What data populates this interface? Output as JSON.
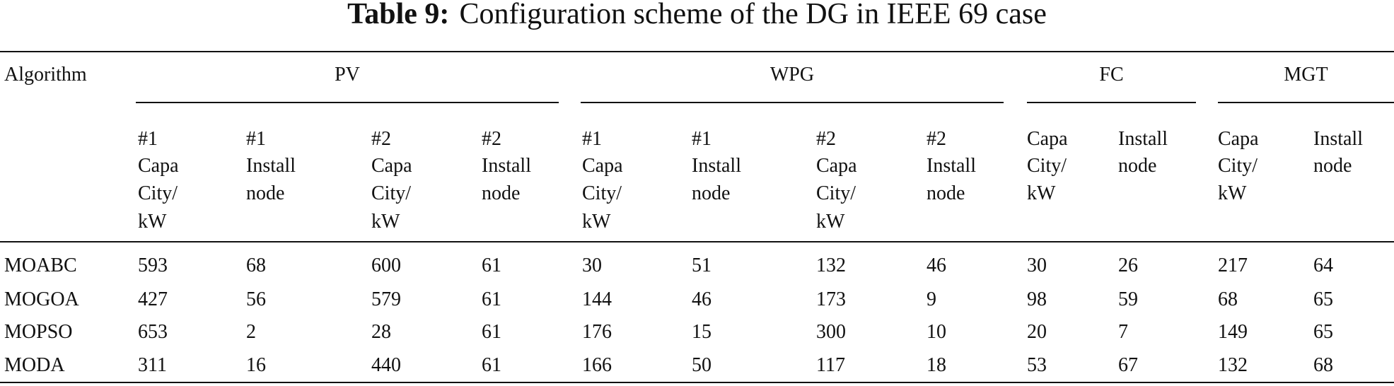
{
  "title": {
    "label": "Table 9:",
    "text": "Configuration scheme of the DG in IEEE 69 case"
  },
  "table": {
    "first_header": "Algorithm",
    "groups": [
      "PV",
      "WPG",
      "FC",
      "MGT"
    ],
    "subheaders": [
      [
        "#1",
        "Capa",
        "City/",
        "kW"
      ],
      [
        "#1",
        "Install",
        "node"
      ],
      [
        "#2",
        "Capa",
        "City/",
        "kW"
      ],
      [
        "#2",
        "Install",
        "node"
      ],
      [
        "#1",
        "Capa",
        "City/",
        "kW"
      ],
      [
        "#1",
        "Install",
        "node"
      ],
      [
        "#2",
        "Capa",
        "City/",
        "kW"
      ],
      [
        "#2",
        "Install",
        "node"
      ],
      [
        "Capa",
        "City/",
        "kW"
      ],
      [
        "Install",
        "node"
      ],
      [
        "Capa",
        "City/",
        "kW"
      ],
      [
        "Install",
        "node"
      ]
    ],
    "rows": [
      [
        "MOABC",
        "593",
        "68",
        "600",
        "61",
        "30",
        "51",
        "132",
        "46",
        "30",
        "26",
        "217",
        "64"
      ],
      [
        "MOGOA",
        "427",
        "56",
        "579",
        "61",
        "144",
        "46",
        "173",
        "9",
        "98",
        "59",
        "68",
        "65"
      ],
      [
        "MOPSO",
        "653",
        "2",
        "28",
        "61",
        "176",
        "15",
        "300",
        "10",
        "20",
        "7",
        "149",
        "65"
      ],
      [
        "MODA",
        "311",
        "16",
        "440",
        "61",
        "166",
        "50",
        "117",
        "18",
        "53",
        "67",
        "132",
        "68"
      ]
    ]
  }
}
